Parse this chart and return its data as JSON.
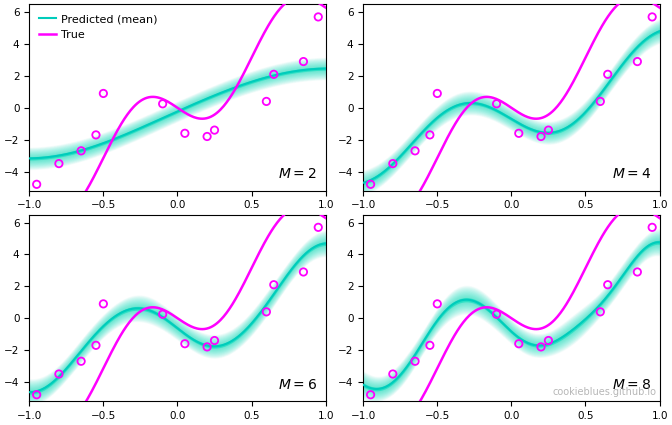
{
  "M_values": [
    2,
    4,
    6,
    8
  ],
  "x_data": [
    -0.95,
    -0.8,
    -0.65,
    -0.55,
    -0.5,
    -0.1,
    0.05,
    0.2,
    0.25,
    0.6,
    0.65,
    0.85,
    0.95
  ],
  "y_data": [
    -4.8,
    -3.5,
    -2.7,
    -1.7,
    0.9,
    0.25,
    -1.6,
    -1.8,
    -1.4,
    0.4,
    2.1,
    2.9,
    5.7
  ],
  "xlim": [
    -1.0,
    1.0
  ],
  "ylim": [
    -5.2,
    6.5
  ],
  "yticks": [
    -4,
    -2,
    0,
    2,
    4,
    6
  ],
  "xticks": [
    -1.0,
    -0.5,
    0.0,
    0.5,
    1.0
  ],
  "true_color": "#ff00ff",
  "mean_color": "#00ccbb",
  "data_color": "#ff00ff",
  "band_color": "#00ddbb",
  "bg_color": "#ffffff",
  "legend_loc": "upper left",
  "watermark": "cookieblues.github.io",
  "label_fontsize": 10,
  "legend_fontsize": 8,
  "watermark_fontsize": 7,
  "alpha_prior": 2.0,
  "beta_likelihood": 30.0,
  "n_bands": 25,
  "max_sigma": 3.5
}
